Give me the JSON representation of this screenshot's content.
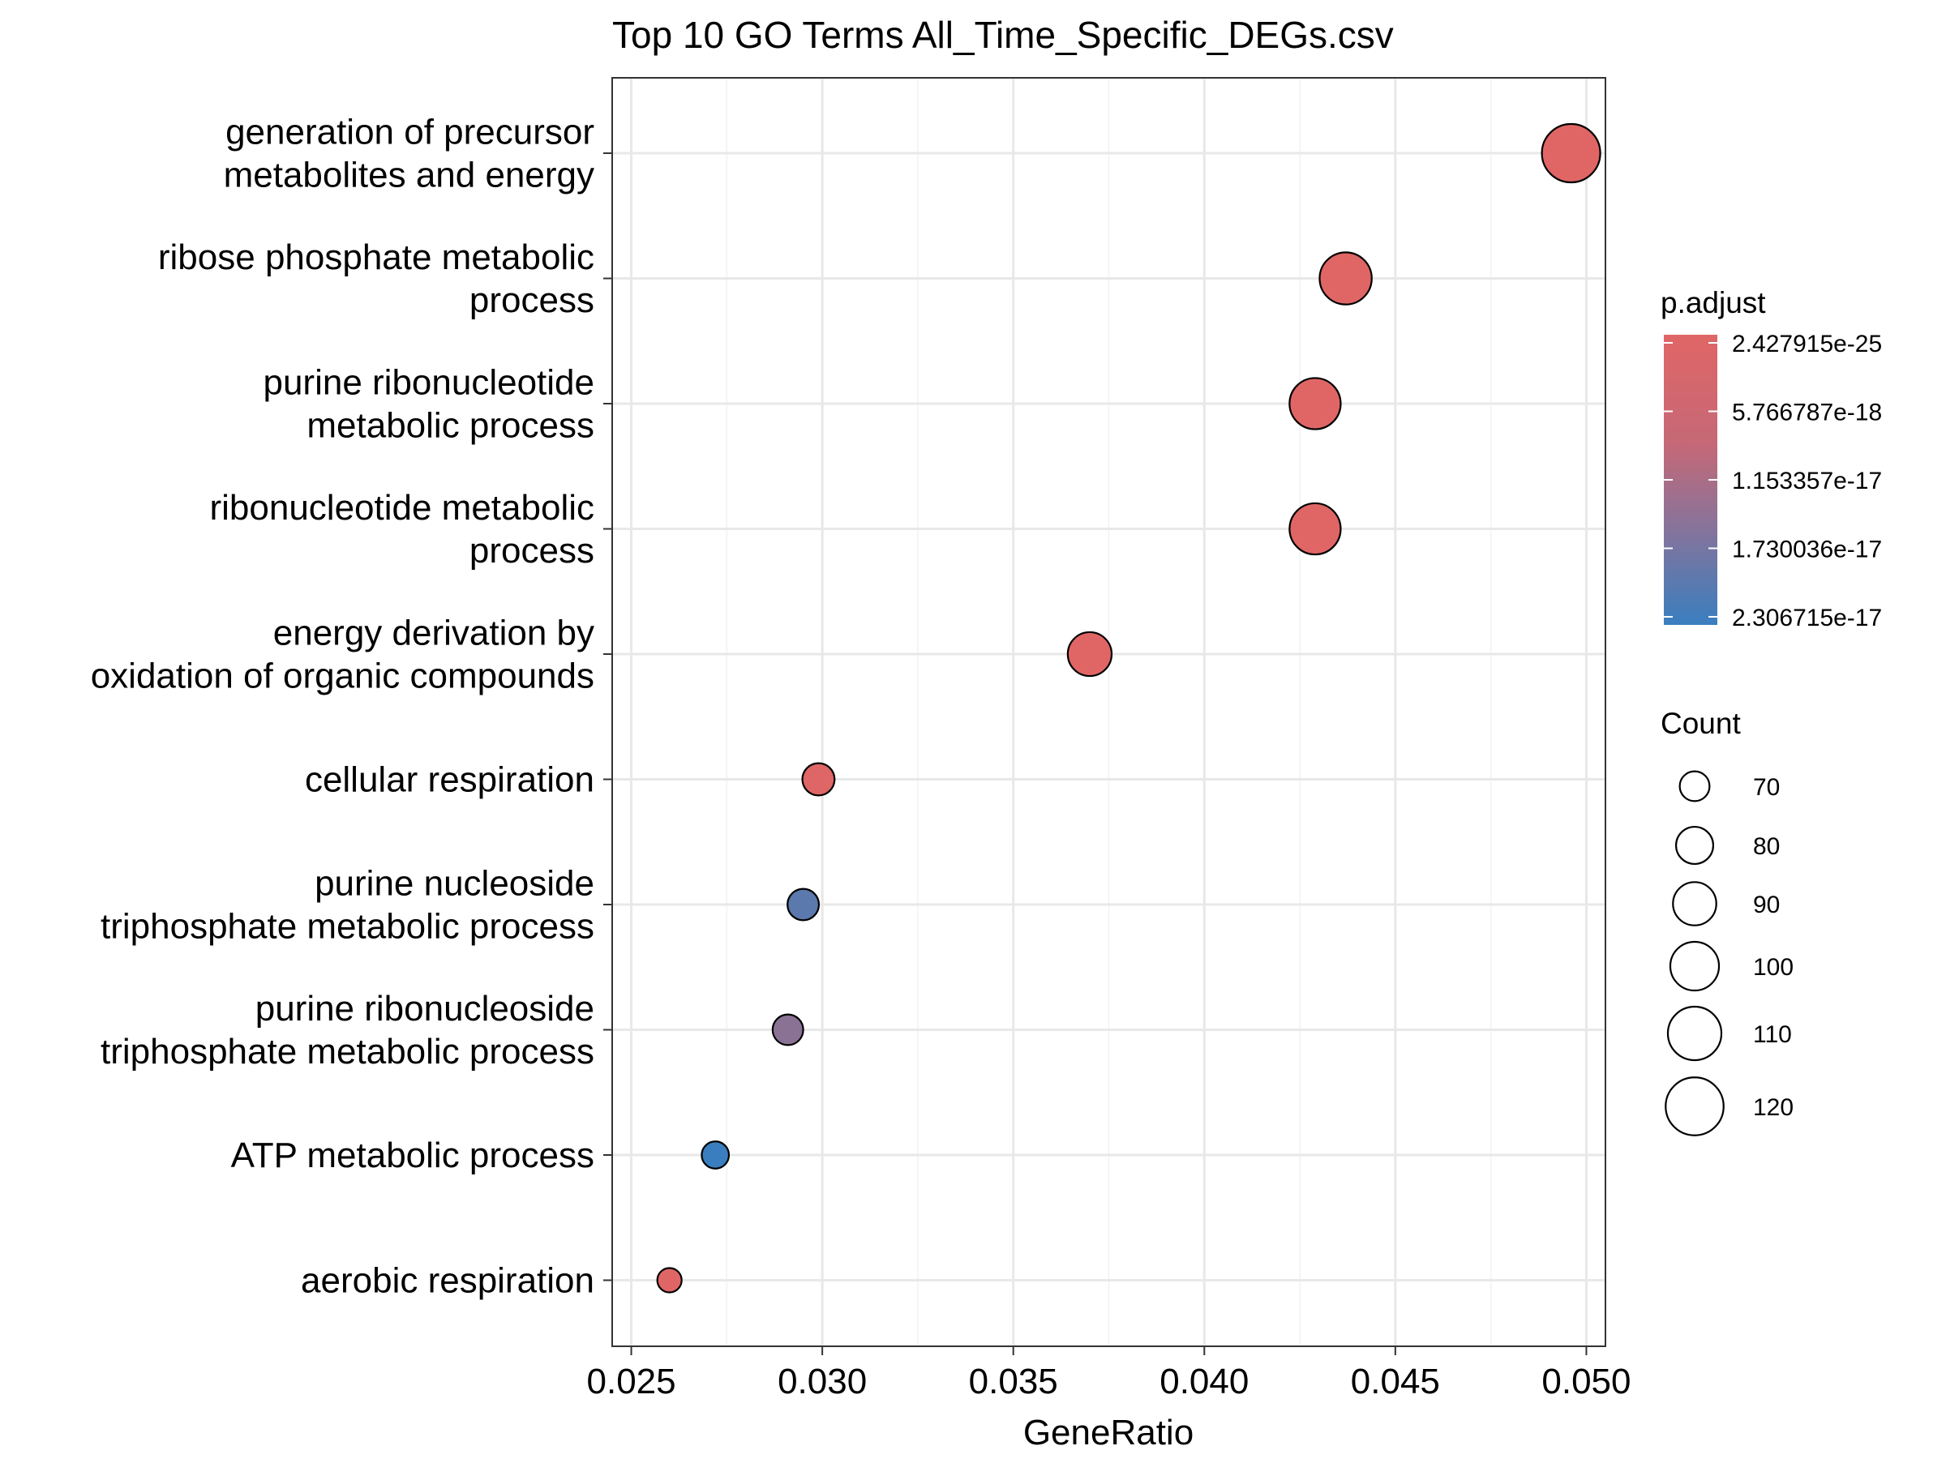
{
  "chart_data": {
    "type": "scatter",
    "title": "Top 10 GO Terms All_Time_Specific_DEGs.csv",
    "xlabel": "GeneRatio",
    "ylabel": "",
    "xlim": [
      0.0245,
      0.0505
    ],
    "x_ticks": [
      "0.025",
      "0.030",
      "0.035",
      "0.040",
      "0.045",
      "0.050"
    ],
    "x_tick_values": [
      0.025,
      0.03,
      0.035,
      0.04,
      0.045,
      0.05
    ],
    "grid": true,
    "points": [
      {
        "term": [
          "generation of precursor",
          "metabolites and energy"
        ],
        "gene_ratio": 0.0496,
        "count": 121,
        "p_adjust": 2.43e-25
      },
      {
        "term": [
          "ribose phosphate metabolic",
          "process"
        ],
        "gene_ratio": 0.0437,
        "count": 107,
        "p_adjust": 1e-20
      },
      {
        "term": [
          "purine ribonucleotide",
          "metabolic process"
        ],
        "gene_ratio": 0.0429,
        "count": 105,
        "p_adjust": 1e-20
      },
      {
        "term": [
          "ribonucleotide metabolic",
          "process"
        ],
        "gene_ratio": 0.0429,
        "count": 105,
        "p_adjust": 1e-20
      },
      {
        "term": [
          "energy derivation by",
          "oxidation of organic compounds"
        ],
        "gene_ratio": 0.037,
        "count": 91,
        "p_adjust": 1e-22
      },
      {
        "term": [
          "cellular respiration"
        ],
        "gene_ratio": 0.0299,
        "count": 73,
        "p_adjust": 1e-19
      },
      {
        "term": [
          "purine nucleoside",
          "triphosphate metabolic process"
        ],
        "gene_ratio": 0.0295,
        "count": 72,
        "p_adjust": 1.85e-17
      },
      {
        "term": [
          "purine ribonucleoside",
          "triphosphate metabolic process"
        ],
        "gene_ratio": 0.0291,
        "count": 71,
        "p_adjust": 1.2e-17
      },
      {
        "term": [
          "ATP metabolic process"
        ],
        "gene_ratio": 0.0272,
        "count": 67,
        "p_adjust": 2.3e-17
      },
      {
        "term": [
          "aerobic respiration"
        ],
        "gene_ratio": 0.026,
        "count": 64,
        "p_adjust": 1e-20
      }
    ],
    "color_legend": {
      "title": "p.adjust",
      "labels": [
        "2.427915e-25",
        "5.766787e-18",
        "1.153357e-17",
        "1.730036e-17",
        "2.306715e-17"
      ],
      "values": [
        2.427915e-25,
        5.766787e-18,
        1.153357e-17,
        1.730036e-17,
        2.306715e-17
      ],
      "low_color": "#E06666",
      "high_color": "#3A7EBF"
    },
    "size_legend": {
      "title": "Count",
      "labels": [
        "70",
        "80",
        "90",
        "100",
        "110",
        "120"
      ],
      "values": [
        70,
        80,
        90,
        100,
        110,
        120
      ]
    },
    "legend_position": "right"
  }
}
